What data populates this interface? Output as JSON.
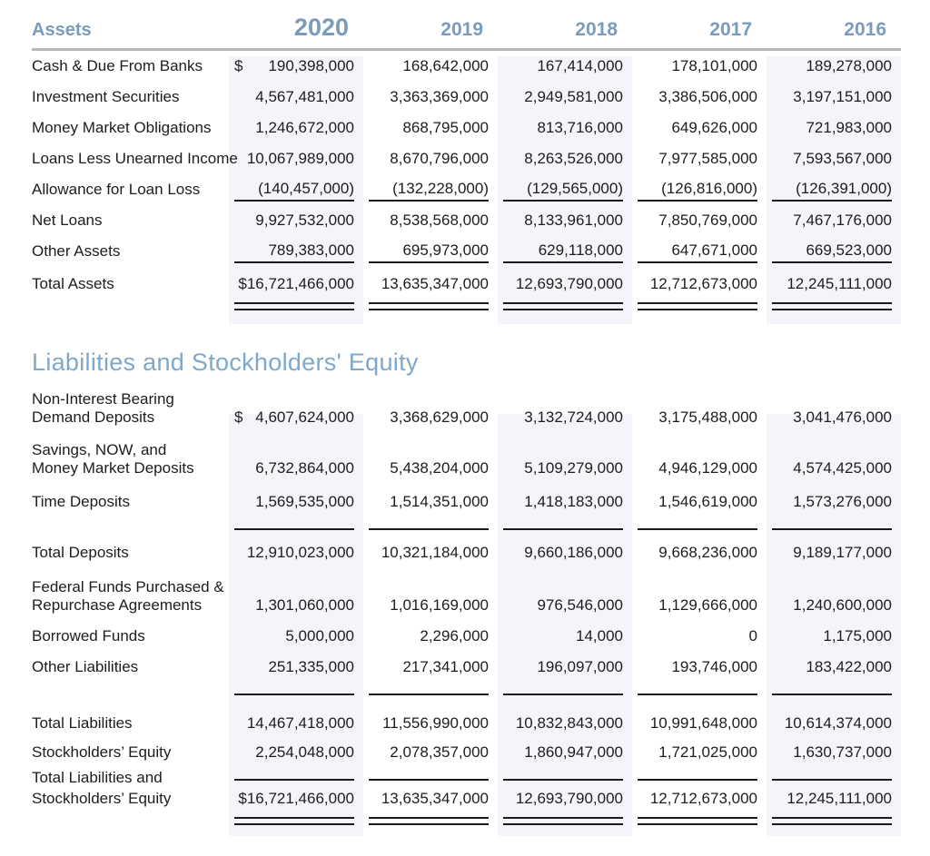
{
  "palette": {
    "header_blue": "#7a9bba",
    "section_title_blue": "#7fa8ca",
    "stripe_background": "#f4f5fa",
    "header_rule_gray": "#b7b8bb",
    "text_black": "#1d1d1f"
  },
  "columns": [
    "2020",
    "2019",
    "2018",
    "2017",
    "2016"
  ],
  "assets": {
    "heading": "Assets",
    "rows": [
      {
        "label": "Cash & Due From Banks",
        "dollar": "$",
        "values": [
          "190,398,000",
          "168,642,000",
          "167,414,000",
          "178,101,000",
          "189,278,000"
        ]
      },
      {
        "label": "Investment Securities",
        "values": [
          "4,567,481,000",
          "3,363,369,000",
          "2,949,581,000",
          "3,386,506,000",
          "3,197,151,000"
        ]
      },
      {
        "label": "Money Market Obligations",
        "values": [
          "1,246,672,000",
          "868,795,000",
          "813,716,000",
          "649,626,000",
          "721,983,000"
        ]
      },
      {
        "label": "Loans Less Unearned Income",
        "values": [
          "10,067,989,000",
          "8,670,796,000",
          "8,263,526,000",
          "7,977,585,000",
          "7,593,567,000"
        ]
      },
      {
        "label": "Allowance for Loan Loss",
        "style": "underline",
        "values": [
          "(140,457,000)",
          "(132,228,000)",
          "(129,565,000)",
          "(126,816,000)",
          "(126,391,000)"
        ]
      },
      {
        "label": "Net Loans",
        "values": [
          "9,927,532,000",
          "8,538,568,000",
          "8,133,961,000",
          "7,850,769,000",
          "7,467,176,000"
        ]
      },
      {
        "label": "Other Assets",
        "style": "underline",
        "values": [
          "789,383,000",
          "695,973,000",
          "629,118,000",
          "647,671,000",
          "669,523,000"
        ]
      },
      {
        "label": "Total Assets",
        "values": [
          "$16,721,466,000",
          "13,635,347,000",
          "12,693,790,000",
          "12,712,673,000",
          "12,245,111,000"
        ]
      },
      {
        "style": "double-rule"
      }
    ]
  },
  "liabilities": {
    "title": "Liabilities and Stockholders' Equity",
    "rows": [
      {
        "label": [
          "Non-Interest Bearing",
          "Demand Deposits"
        ],
        "dollar": "$",
        "values": [
          "4,607,624,000",
          "3,368,629,000",
          "3,132,724,000",
          "3,175,488,000",
          "3,041,476,000"
        ]
      },
      {
        "label": [
          "Savings, NOW, and",
          "Money Market Deposits"
        ],
        "values": [
          "6,732,864,000",
          "5,438,204,000",
          "5,109,279,000",
          "4,946,129,000",
          "4,574,425,000"
        ]
      },
      {
        "label": "Time Deposits",
        "values": [
          "1,569,535,000",
          "1,514,351,000",
          "1,418,183,000",
          "1,546,619,000",
          "1,573,276,000"
        ]
      },
      {
        "style": "rule"
      },
      {
        "label": "Total Deposits",
        "values": [
          "12,910,023,000",
          "10,321,184,000",
          "9,660,186,000",
          "9,668,236,000",
          "9,189,177,000"
        ]
      },
      {
        "label": [
          "Federal Funds Purchased &",
          "Repurchase Agreements"
        ],
        "values": [
          "1,301,060,000",
          "1,016,169,000",
          "976,546,000",
          "1,129,666,000",
          "1,240,600,000"
        ]
      },
      {
        "label": "Borrowed Funds",
        "values": [
          "5,000,000",
          "2,296,000",
          "14,000",
          "0",
          "1,175,000"
        ]
      },
      {
        "label": "Other Liabilities",
        "values": [
          "251,335,000",
          "217,341,000",
          "196,097,000",
          "193,746,000",
          "183,422,000"
        ]
      },
      {
        "style": "rule"
      },
      {
        "label": "Total Liabilities",
        "values": [
          "14,467,418,000",
          "11,556,990,000",
          "10,832,843,000",
          "10,991,648,000",
          "10,614,374,000"
        ]
      },
      {
        "label": "Stockholders’ Equity",
        "values": [
          "2,254,048,000",
          "2,078,357,000",
          "1,860,947,000",
          "1,721,025,000",
          "1,630,737,000"
        ]
      },
      {
        "label": "Total Liabilities and",
        "style": "rule"
      },
      {
        "label": "Stockholders’ Equity",
        "values": [
          "$16,721,466,000",
          "13,635,347,000",
          "12,693,790,000",
          "12,712,673,000",
          "12,245,111,000"
        ]
      },
      {
        "style": "double-rule"
      }
    ]
  }
}
